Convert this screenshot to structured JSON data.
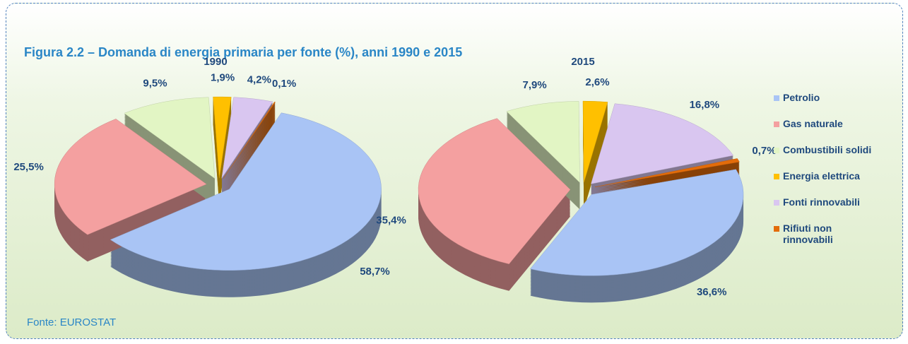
{
  "title": "Figura 2.2 –  Domanda di energia primaria per fonte (%), anni 1990 e 2015",
  "source": "Fonte: EUROSTAT",
  "chart_data": [
    {
      "type": "pie",
      "title": "1990",
      "categories": [
        "Petrolio",
        "Gas naturale",
        "Combustibili solidi",
        "Energia elettrica",
        "Fonti rinnovabili",
        "Rifiuti non rinnovabili"
      ],
      "values": [
        58.7,
        25.5,
        9.5,
        1.9,
        4.2,
        0.1
      ],
      "value_labels": [
        "58,7%",
        "25,5%",
        "9,5%",
        "1,9%",
        "4,2%",
        "0,1%"
      ],
      "colors": [
        "#a9c4f5",
        "#f4a0a0",
        "#e2f5c4",
        "#ffc000",
        "#d9c6f0",
        "#e36c0a"
      ]
    },
    {
      "type": "pie",
      "title": "2015",
      "categories": [
        "Petrolio",
        "Gas naturale",
        "Combustibili solidi",
        "Energia elettrica",
        "Fonti rinnovabili",
        "Rifiuti non rinnovabili"
      ],
      "values": [
        36.6,
        35.4,
        7.9,
        2.6,
        16.8,
        0.7
      ],
      "value_labels": [
        "36,6%",
        "35,4%",
        "7,9%",
        "2,6%",
        "16,8%",
        "0,7%"
      ],
      "colors": [
        "#a9c4f5",
        "#f4a0a0",
        "#e2f5c4",
        "#ffc000",
        "#d9c6f0",
        "#e36c0a"
      ]
    }
  ]
}
